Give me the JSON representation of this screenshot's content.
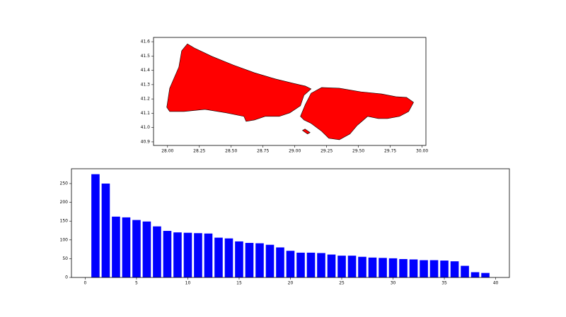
{
  "chart_data": [
    {
      "type": "map",
      "color": "red",
      "edgecolor": "black",
      "xlim": [
        27.89,
        30.03
      ],
      "ylim": [
        40.875,
        41.63
      ],
      "xticks": [
        {
          "value": 28,
          "label": "28.00"
        },
        {
          "value": 28.25,
          "label": "28.25"
        },
        {
          "value": 28.5,
          "label": "28.50"
        },
        {
          "value": 28.75,
          "label": "28.75"
        },
        {
          "value": 29,
          "label": "29.00"
        },
        {
          "value": 29.25,
          "label": "29.25"
        },
        {
          "value": 29.5,
          "label": "29.50"
        },
        {
          "value": 29.75,
          "label": "29.75"
        },
        {
          "value": 30,
          "label": "30.00"
        }
      ],
      "yticks": [
        40.9,
        {
          "value": 41,
          "label": "41.0"
        },
        41.1,
        41.2,
        41.3,
        41.4,
        41.5,
        41.6
      ],
      "shapes": [
        {
          "x": [
            27.994,
            28.017,
            28.089,
            28.111,
            28.156,
            28.211,
            28.35,
            28.517,
            28.683,
            28.85,
            28.989,
            29.083,
            29.128,
            29.072,
            29.044,
            28.961,
            28.878,
            28.767,
            28.683,
            28.617,
            28.6,
            28.461,
            28.294,
            28.128,
            28.017
          ],
          "y": [
            41.142,
            41.275,
            41.423,
            41.536,
            41.585,
            41.556,
            41.497,
            41.437,
            41.383,
            41.339,
            41.309,
            41.29,
            41.27,
            41.226,
            41.152,
            41.103,
            41.078,
            41.078,
            41.053,
            41.043,
            41.078,
            41.103,
            41.127,
            41.112,
            41.112
          ]
        },
        {
          "x": [
            29.044,
            29.083,
            29.128,
            29.211,
            29.35,
            29.517,
            29.683,
            29.794,
            29.878,
            29.933,
            29.894,
            29.822,
            29.728,
            29.656,
            29.572,
            29.489,
            29.433,
            29.35,
            29.267,
            29.211,
            29.128,
            29.072
          ],
          "y": [
            41.078,
            41.162,
            41.24,
            41.28,
            41.275,
            41.25,
            41.235,
            41.216,
            41.211,
            41.176,
            41.112,
            41.078,
            41.063,
            41.063,
            41.078,
            41.014,
            40.955,
            40.915,
            40.925,
            40.974,
            41.029,
            41.053
          ]
        },
        {
          "x": [
            29.06,
            29.1,
            29.12,
            29.08
          ],
          "y": [
            40.98,
            40.955,
            40.965,
            40.99
          ]
        }
      ]
    },
    {
      "type": "bar",
      "color": "blue",
      "x": [
        1,
        2,
        3,
        4,
        5,
        6,
        7,
        8,
        9,
        10,
        11,
        12,
        13,
        14,
        15,
        16,
        17,
        18,
        19,
        20,
        21,
        22,
        23,
        24,
        25,
        26,
        27,
        28,
        29,
        30,
        31,
        32,
        33,
        34,
        35,
        36,
        37,
        38,
        39
      ],
      "values": [
        275,
        250,
        162,
        160,
        153,
        149,
        136,
        124,
        120,
        119,
        118,
        117,
        106,
        104,
        96,
        92,
        91,
        87,
        80,
        71,
        66,
        66,
        65,
        61,
        58,
        58,
        55,
        53,
        52,
        51,
        49,
        48,
        46,
        46,
        45,
        43,
        31,
        14,
        12
      ],
      "xlim": [
        -1.34,
        41.34
      ],
      "ylim": [
        0,
        289.5
      ],
      "xticks": [
        0,
        5,
        10,
        15,
        20,
        25,
        30,
        35,
        40
      ],
      "yticks": [
        0,
        50,
        100,
        150,
        200,
        250
      ]
    }
  ]
}
